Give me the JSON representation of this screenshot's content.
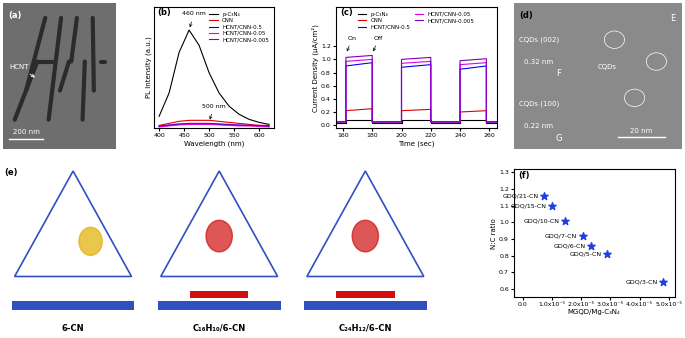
{
  "chart_data": [
    {
      "panel": "(b)",
      "type": "line",
      "x_label": "Wavelength (nm)",
      "y_label": "PL Intensity (a.u.)",
      "x": [
        400,
        420,
        440,
        460,
        480,
        500,
        520,
        540,
        560,
        580,
        600,
        620
      ],
      "series": [
        {
          "name": "p-C₃N₄",
          "color": "#000000",
          "values": [
            0.12,
            0.35,
            0.75,
            0.97,
            0.82,
            0.55,
            0.35,
            0.22,
            0.14,
            0.09,
            0.06,
            0.04
          ]
        },
        {
          "name": "CNN",
          "color": "#e00000",
          "values": [
            0.03,
            0.05,
            0.07,
            0.08,
            0.08,
            0.08,
            0.07,
            0.06,
            0.05,
            0.04,
            0.03,
            0.03
          ]
        },
        {
          "name": "HCNT/CNN-0.5",
          "color": "#0000ff",
          "values": [
            0.02,
            0.03,
            0.04,
            0.045,
            0.045,
            0.045,
            0.04,
            0.035,
            0.03,
            0.03,
            0.025,
            0.02
          ]
        },
        {
          "name": "HCNT/CNN-0.05",
          "color": "#e000e0",
          "values": [
            0.015,
            0.025,
            0.035,
            0.04,
            0.04,
            0.04,
            0.035,
            0.03,
            0.025,
            0.025,
            0.02,
            0.015
          ]
        },
        {
          "name": "HCNT/CNN-0.005",
          "color": "#8000c0",
          "values": [
            0.025,
            0.035,
            0.045,
            0.05,
            0.05,
            0.05,
            0.045,
            0.04,
            0.035,
            0.03,
            0.03,
            0.025
          ]
        }
      ],
      "xlim": [
        390,
        630
      ],
      "xticks": [
        400,
        450,
        500,
        550,
        600
      ],
      "ylim": [
        0,
        1.2
      ],
      "tick_labels": "x",
      "legend": "upper right",
      "annotations": [
        {
          "text": "460 nm",
          "x": 460,
          "y": 0.97
        },
        {
          "text": "500 nm",
          "x": 500,
          "y": 0.06
        }
      ]
    },
    {
      "panel": "(c)",
      "type": "line",
      "x_label": "Time (sec)",
      "y_label": "Current Density (μA/cm²)",
      "x": [
        155,
        162,
        162,
        180,
        180,
        200,
        200,
        220,
        220,
        240,
        240,
        258,
        258,
        265
      ],
      "series": [
        {
          "name": "p-C₃N₄",
          "color": "#000000",
          "values": [
            0.03,
            0.03,
            0.08,
            0.08,
            0.03,
            0.03,
            0.08,
            0.08,
            0.03,
            0.03,
            0.08,
            0.08,
            0.03,
            0.03
          ]
        },
        {
          "name": "CNN",
          "color": "#e00000",
          "values": [
            0.05,
            0.05,
            0.22,
            0.25,
            0.05,
            0.05,
            0.22,
            0.24,
            0.05,
            0.05,
            0.2,
            0.22,
            0.05,
            0.05
          ]
        },
        {
          "name": "HCNT/CNN-0.5",
          "color": "#0000ff",
          "values": [
            0.05,
            0.05,
            0.9,
            0.95,
            0.05,
            0.05,
            0.88,
            0.92,
            0.05,
            0.05,
            0.85,
            0.9,
            0.05,
            0.05
          ]
        },
        {
          "name": "HCNT/CNN-0.05",
          "color": "#e000e0",
          "values": [
            0.05,
            0.05,
            0.97,
            1.0,
            0.05,
            0.05,
            0.94,
            0.97,
            0.05,
            0.05,
            0.92,
            0.95,
            0.05,
            0.05
          ]
        },
        {
          "name": "HCNT/CNN-0.005",
          "color": "#8000c0",
          "values": [
            0.05,
            0.05,
            1.03,
            1.06,
            0.05,
            0.05,
            1.0,
            1.03,
            0.05,
            0.05,
            0.98,
            1.01,
            0.05,
            0.05
          ]
        }
      ],
      "xlim": [
        155,
        265
      ],
      "xticks": [
        160,
        180,
        200,
        220,
        240,
        260
      ],
      "ylim": [
        -0.05,
        1.8
      ],
      "yticks": [
        {
          "value": 0,
          "label": "0.0"
        },
        {
          "value": 0.2,
          "label": "0.2"
        },
        {
          "value": 0.4,
          "label": "0.4"
        },
        {
          "value": 0.6,
          "label": "0.6"
        },
        {
          "value": 0.8,
          "label": "0.8"
        },
        {
          "value": 1.0,
          "label": "1.0"
        },
        {
          "value": 1.2,
          "label": "1.2"
        }
      ],
      "legend": "top",
      "annotations": [
        {
          "text": "On",
          "x": 162,
          "y": 1.08
        },
        {
          "text": "Off",
          "x": 180,
          "y": 1.08
        }
      ]
    },
    {
      "panel": "(f)",
      "type": "scatter",
      "x_label": "MGQD/Mg-C₃N₄",
      "y_label": "N:C ratio",
      "x": [
        7.5e-06,
        1e-05,
        1.45e-05,
        2.05e-05,
        2.35e-05,
        2.9e-05,
        4.8e-05
      ],
      "values": [
        1.16,
        1.1,
        1.01,
        0.92,
        0.86,
        0.81,
        0.64
      ],
      "point_labels": [
        "GDQ/21-CN",
        "GDQ/15-CN",
        "GDQ/10-CN",
        "GDQ/7-CN",
        "GDQ/6-CN",
        "GDQ/5-CN",
        "GDQ/3-CN"
      ],
      "color": "#1f3fe0",
      "marker": "star",
      "xlim": [
        -3e-06,
        5.2e-05
      ],
      "xticks": [
        {
          "value": 0,
          "label": "0.0"
        },
        {
          "value": 1e-05,
          "label": "1.0x10⁻⁵"
        },
        {
          "value": 2e-05,
          "label": "2.0x10⁻⁵"
        },
        {
          "value": 3e-05,
          "label": "3.0x10⁻⁵"
        },
        {
          "value": 4e-05,
          "label": "4.0x10⁻⁵"
        },
        {
          "value": 5e-05,
          "label": "5.0x10⁻⁵"
        }
      ],
      "ylim": [
        0.55,
        1.32
      ],
      "yticks": [
        {
          "value": 0.6,
          "label": "0.6"
        },
        {
          "value": 0.7,
          "label": "0.7"
        },
        {
          "value": 0.8,
          "label": "0.8"
        },
        {
          "value": 0.9,
          "label": "0.9"
        },
        {
          "value": 1.0,
          "label": "1.0"
        },
        {
          "value": 1.1,
          "label": "1.1"
        },
        {
          "value": 1.2,
          "label": "1.2"
        },
        {
          "value": 1.3,
          "label": "1.3"
        }
      ]
    }
  ],
  "images": [
    {
      "panel": "(a)",
      "labels": [
        "HCNT"
      ],
      "scale_bar": "200 nm"
    },
    {
      "panel": "(d)",
      "letters": [
        "E",
        "F",
        "G"
      ],
      "labels": [
        "CQDs (002)",
        "0.32 nm",
        "CQDs (100)",
        "0.22 nm",
        "CQDs"
      ],
      "scale_bar": "20 nm"
    },
    {
      "panel": "(e)",
      "labels": [
        "6-CN",
        "C₁₆H₁₀/6-CN",
        "C₂₄H₁₂/6-CN"
      ]
    }
  ]
}
